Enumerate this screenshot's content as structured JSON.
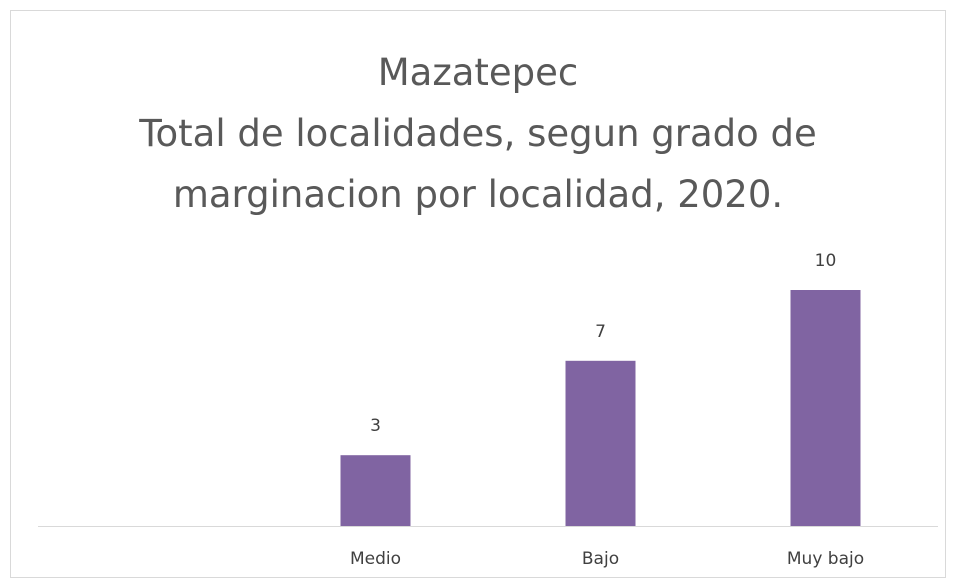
{
  "chart_data": {
    "type": "bar",
    "title": "Mazatepec",
    "subtitle": "Total de localidades, segun grado de marginacion por localidad, 2020.",
    "categories": [
      null,
      "Medio",
      "Bajo",
      "Muy bajo"
    ],
    "values": [
      null,
      3,
      7,
      10
    ],
    "color": "#8064a2"
  }
}
